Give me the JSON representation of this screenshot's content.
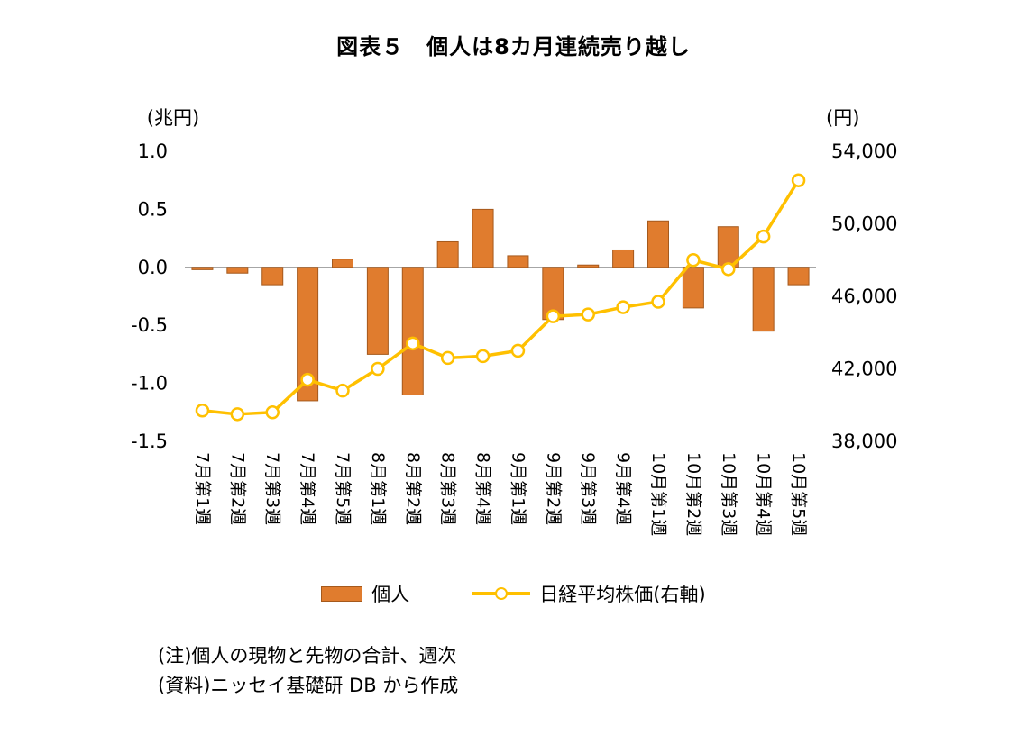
{
  "title": "図表５　個人は8カ月連続売り越し",
  "chart_data": {
    "type": "bar",
    "combo": "bar+line",
    "categories": [
      "7月第1週",
      "7月第2週",
      "7月第3週",
      "7月第4週",
      "7月第5週",
      "8月第1週",
      "8月第2週",
      "8月第3週",
      "8月第4週",
      "9月第1週",
      "9月第2週",
      "9月第3週",
      "9月第4週",
      "10月第1週",
      "10月第2週",
      "10月第3週",
      "10月第4週",
      "10月第5週"
    ],
    "series": [
      {
        "name": "個人",
        "type": "bar",
        "axis": "left",
        "color": "#E07C2E",
        "edge_color": "#A5591C",
        "values": [
          -0.02,
          -0.05,
          -0.15,
          -1.15,
          0.07,
          -0.75,
          -1.1,
          0.22,
          0.5,
          0.1,
          -0.45,
          0.02,
          0.15,
          0.4,
          -0.35,
          0.35,
          -0.55,
          -0.15
        ]
      },
      {
        "name": "日経平均株価(右軸)",
        "type": "line",
        "axis": "right",
        "color": "#FFC000",
        "marker": "circle-white-fill",
        "values": [
          39700,
          39500,
          39600,
          41400,
          40800,
          42000,
          43400,
          42600,
          42700,
          43000,
          44900,
          45000,
          45400,
          45700,
          48000,
          47500,
          49300,
          52400
        ]
      }
    ],
    "left_axis": {
      "unit": "(兆円)",
      "min": -1.5,
      "max": 1.0,
      "ticks": [
        1.0,
        0.5,
        0.0,
        -0.5,
        -1.0,
        -1.5
      ],
      "tick_labels": [
        "1.0",
        "0.5",
        "0.0",
        "-0.5",
        "-1.0",
        "-1.5"
      ]
    },
    "right_axis": {
      "unit": "(円)",
      "min": 38000,
      "max": 54000,
      "ticks": [
        54000,
        50000,
        46000,
        42000,
        38000
      ],
      "tick_labels": [
        "54,000",
        "50,000",
        "46,000",
        "42,000",
        "38,000"
      ]
    },
    "grid": "zero-line-only",
    "zero_line_color": "#A6A6A6",
    "legend_position": "bottom"
  },
  "legend": {
    "items": [
      {
        "label": "個人",
        "swatch": "bar"
      },
      {
        "label": "日経平均株価(右軸)",
        "swatch": "line-marker"
      }
    ]
  },
  "notes": [
    "(注)個人の現物と先物の合計、週次",
    "(資料)ニッセイ基礎研 DB から作成"
  ]
}
